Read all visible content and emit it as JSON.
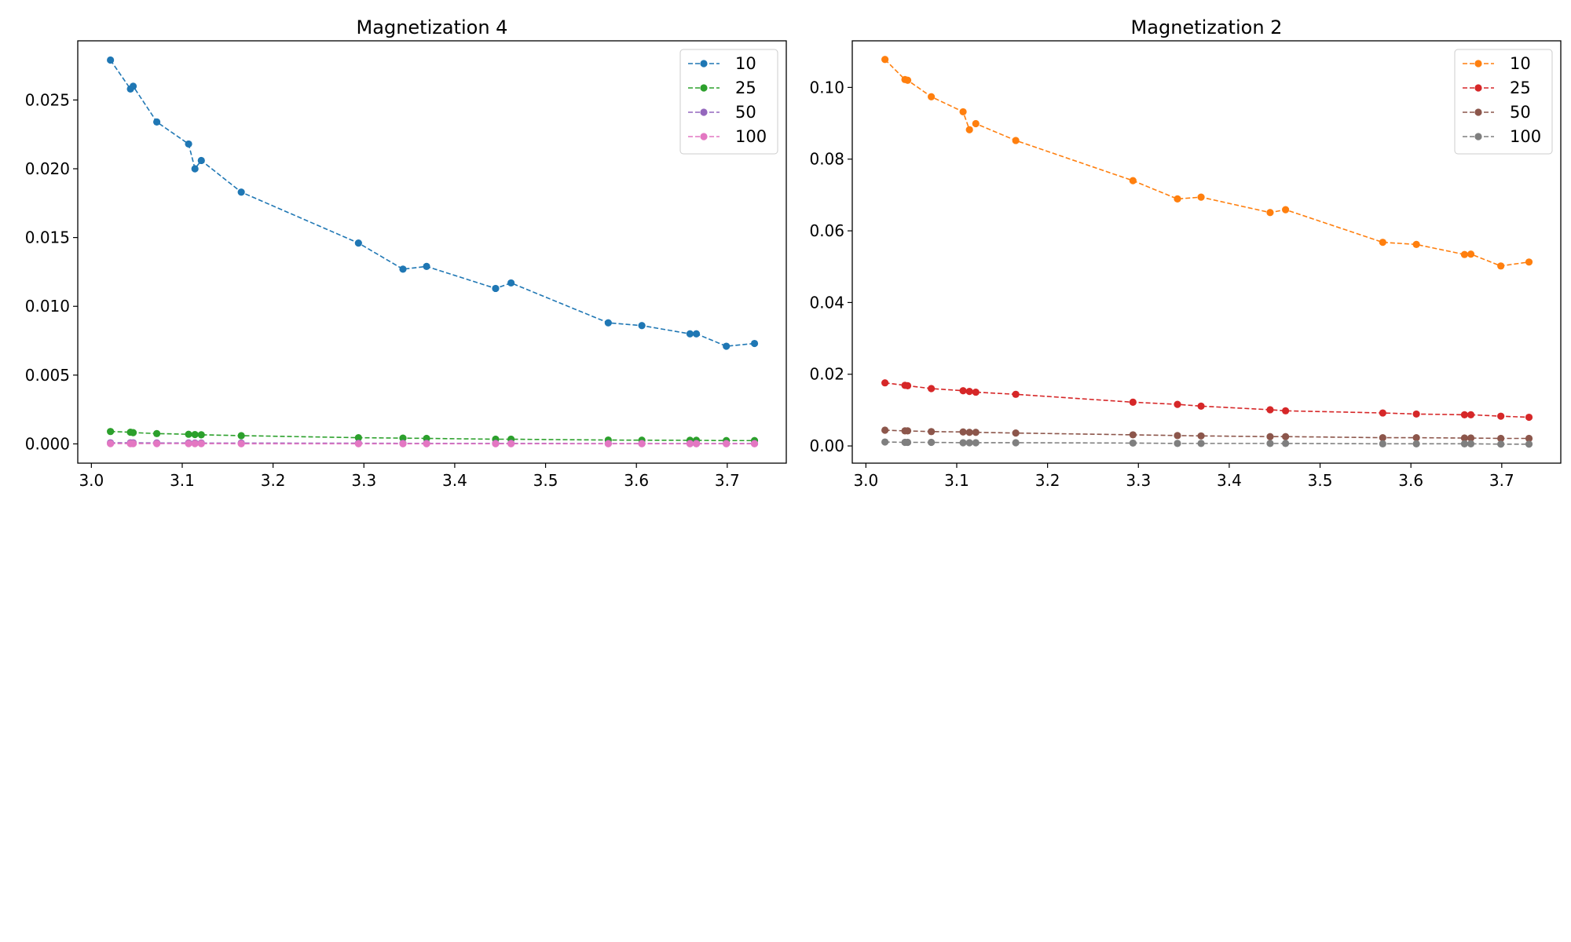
{
  "figure": {
    "background": "#ffffff"
  },
  "chart_data": [
    {
      "type": "line",
      "title": "Magnetization 4",
      "xlabel": "",
      "ylabel": "",
      "xlim": [
        2.985,
        3.765
      ],
      "ylim": [
        -0.0014,
        0.0293
      ],
      "xticks": [
        3.0,
        3.1,
        3.2,
        3.3,
        3.4,
        3.5,
        3.6,
        3.7
      ],
      "xtick_labels": [
        "3.0",
        "3.1",
        "3.2",
        "3.3",
        "3.4",
        "3.5",
        "3.6",
        "3.7"
      ],
      "yticks": [
        0.0,
        0.005,
        0.01,
        0.015,
        0.02,
        0.025
      ],
      "ytick_labels": [
        "0.000",
        "0.005",
        "0.010",
        "0.015",
        "0.020",
        "0.025"
      ],
      "grid": false,
      "legend": "top-right",
      "line_style": "dashed",
      "marker": "circle",
      "x": [
        3.021,
        3.043,
        3.046,
        3.072,
        3.107,
        3.114,
        3.121,
        3.165,
        3.294,
        3.343,
        3.369,
        3.445,
        3.462,
        3.569,
        3.606,
        3.659,
        3.666,
        3.699,
        3.73
      ],
      "series": [
        {
          "name": "10",
          "color": "#1f77b4",
          "values": [
            0.0279,
            0.0258,
            0.026,
            0.0234,
            0.0218,
            0.02,
            0.0206,
            0.0183,
            0.0146,
            0.0127,
            0.0129,
            0.0113,
            0.0117,
            0.0088,
            0.0086,
            0.008,
            0.008,
            0.0071,
            0.0073
          ]
        },
        {
          "name": "25",
          "color": "#2ca02c",
          "values": [
            0.0009,
            0.00085,
            0.00082,
            0.00075,
            0.0007,
            0.00068,
            0.00066,
            0.0006,
            0.00045,
            0.00042,
            0.0004,
            0.00034,
            0.00034,
            0.00028,
            0.00027,
            0.00026,
            0.00026,
            0.00024,
            0.00024
          ]
        },
        {
          "name": "50",
          "color": "#9467bd",
          "values": [
            8e-05,
            8e-05,
            8e-05,
            7e-05,
            7e-05,
            6e-05,
            6e-05,
            6e-05,
            5e-05,
            4e-05,
            4e-05,
            4e-05,
            4e-05,
            3e-05,
            3e-05,
            3e-05,
            3e-05,
            3e-05,
            3e-05
          ]
        },
        {
          "name": "100",
          "color": "#e377c2",
          "values": [
            2e-05,
            2e-05,
            2e-05,
            2e-05,
            2e-05,
            2e-05,
            2e-05,
            1e-05,
            1e-05,
            1e-05,
            1e-05,
            1e-05,
            1e-05,
            1e-05,
            1e-05,
            1e-05,
            1e-05,
            1e-05,
            1e-05
          ]
        }
      ]
    },
    {
      "type": "line",
      "title": "Magnetization 2",
      "xlabel": "",
      "ylabel": "",
      "xlim": [
        2.985,
        3.765
      ],
      "ylim": [
        -0.0048,
        0.113
      ],
      "xticks": [
        3.0,
        3.1,
        3.2,
        3.3,
        3.4,
        3.5,
        3.6,
        3.7
      ],
      "xtick_labels": [
        "3.0",
        "3.1",
        "3.2",
        "3.3",
        "3.4",
        "3.5",
        "3.6",
        "3.7"
      ],
      "yticks": [
        0.0,
        0.02,
        0.04,
        0.06,
        0.08,
        0.1
      ],
      "ytick_labels": [
        "0.00",
        "0.02",
        "0.04",
        "0.06",
        "0.08",
        "0.10"
      ],
      "grid": false,
      "legend": "top-right",
      "line_style": "dashed",
      "marker": "circle",
      "x": [
        3.021,
        3.043,
        3.046,
        3.072,
        3.107,
        3.114,
        3.121,
        3.165,
        3.294,
        3.343,
        3.369,
        3.445,
        3.462,
        3.569,
        3.606,
        3.659,
        3.666,
        3.699,
        3.73
      ],
      "series": [
        {
          "name": "10",
          "color": "#ff7f0e",
          "values": [
            0.1078,
            0.1022,
            0.102,
            0.0974,
            0.0932,
            0.0882,
            0.0899,
            0.0852,
            0.074,
            0.0689,
            0.0694,
            0.0651,
            0.0659,
            0.0568,
            0.0562,
            0.0534,
            0.0535,
            0.0502,
            0.0513
          ]
        },
        {
          "name": "25",
          "color": "#d62728",
          "values": [
            0.0176,
            0.0169,
            0.0168,
            0.016,
            0.0154,
            0.0152,
            0.015,
            0.0144,
            0.0122,
            0.0116,
            0.0111,
            0.0101,
            0.0098,
            0.0092,
            0.0089,
            0.0087,
            0.0087,
            0.0083,
            0.008
          ]
        },
        {
          "name": "50",
          "color": "#8c564b",
          "values": [
            0.0044,
            0.0042,
            0.0042,
            0.004,
            0.0039,
            0.0038,
            0.0038,
            0.0036,
            0.0031,
            0.0029,
            0.0028,
            0.0026,
            0.0026,
            0.0023,
            0.0023,
            0.0022,
            0.0022,
            0.0021,
            0.0021
          ]
        },
        {
          "name": "100",
          "color": "#7f7f7f",
          "values": [
            0.0011,
            0.001,
            0.001,
            0.001,
            0.0009,
            0.0009,
            0.0009,
            0.0009,
            0.0008,
            0.0007,
            0.0007,
            0.0007,
            0.0007,
            0.0006,
            0.0006,
            0.0006,
            0.0006,
            0.0005,
            0.0005
          ]
        }
      ]
    }
  ]
}
